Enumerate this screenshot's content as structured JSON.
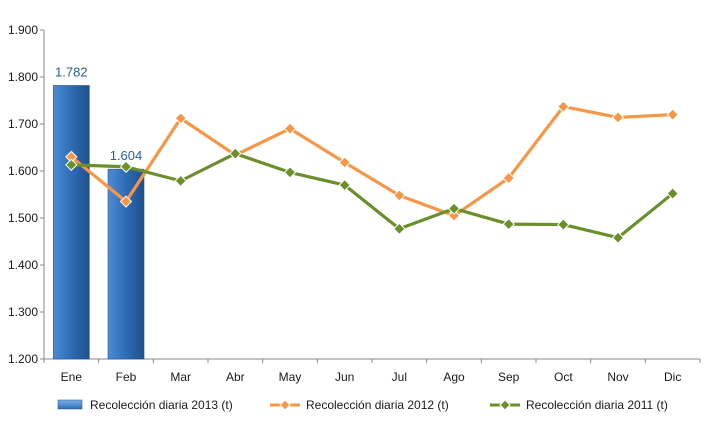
{
  "chart_data": {
    "type": "bar+line",
    "categories": [
      "Ene",
      "Feb",
      "Mar",
      "Abr",
      "May",
      "Jun",
      "Jul",
      "Ago",
      "Sep",
      "Oct",
      "Nov",
      "Dic"
    ],
    "ylim": [
      1200,
      1900
    ],
    "yticks": [
      1200,
      1300,
      1400,
      1500,
      1600,
      1700,
      1800,
      1900
    ],
    "ytick_labels": [
      "1.200",
      "1.300",
      "1.400",
      "1.500",
      "1.600",
      "1.700",
      "1.800",
      "1.900"
    ],
    "grid": false,
    "legend_position": "bottom",
    "series": [
      {
        "name": "Recolección diaria  2013 (t)",
        "kind": "bar",
        "color": "#2e6cb5",
        "values": [
          1782,
          1604,
          null,
          null,
          null,
          null,
          null,
          null,
          null,
          null,
          null,
          null
        ],
        "data_labels": [
          "1.782",
          "1.604"
        ]
      },
      {
        "name": "Recolección diaria  2012 (t)",
        "kind": "line",
        "color": "#f79646",
        "values": [
          1630,
          1535,
          1712,
          1634,
          1690,
          1618,
          1548,
          1505,
          1585,
          1737,
          1714,
          1720
        ]
      },
      {
        "name": "Recolección diaria  2011 (t)",
        "kind": "line",
        "color": "#6a8f2b",
        "values": [
          1613,
          1609,
          1579,
          1637,
          1597,
          1570,
          1477,
          1520,
          1487,
          1486,
          1458,
          1552
        ]
      }
    ]
  }
}
